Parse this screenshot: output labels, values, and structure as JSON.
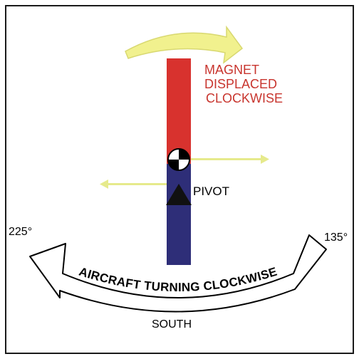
{
  "labels": {
    "magnet_line_1": "MAGNET",
    "magnet_line_2": "DISPLACED",
    "magnet_line_3": "CLOCKWISE",
    "pivot": "PIVOT",
    "heading_left": "225°",
    "heading_right": "135°",
    "turning": "AIRCRAFT TURNING CLOCKWISE",
    "south": "SOUTH"
  },
  "colors": {
    "frame": "#1a1a1a",
    "magnet_north": "#d8322e",
    "magnet_south": "#2e2e78",
    "magnet_label": "#c8352e",
    "force_arrow": "#e6ea8c",
    "curved_arrow_fill": "#f1f18e",
    "curved_arrow_stroke": "#d8d870",
    "pivot_marker": "#000000",
    "text": "#000000"
  },
  "icons": {
    "pivot_center": "checkered-circle-icon",
    "pivot_support": "triangle-icon"
  }
}
